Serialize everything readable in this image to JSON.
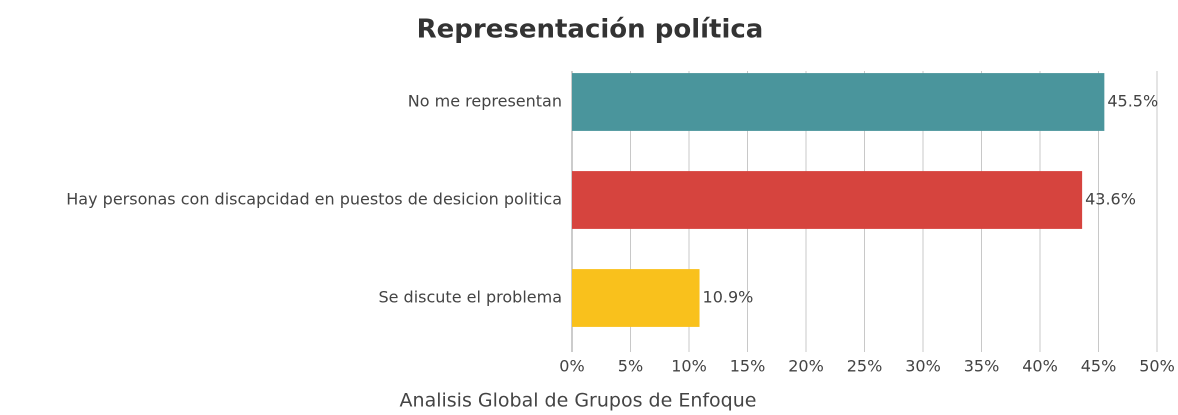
{
  "chart_data": {
    "type": "barh",
    "title": "Representación política",
    "xlabel": "Analisis Global de Grupos de Enfoque",
    "categories": [
      "No me representan",
      "Hay personas con discapcidad en puestos de desicion politica",
      "Se discute el problema"
    ],
    "values": [
      45.5,
      43.6,
      10.9
    ],
    "value_labels": [
      "45.5%",
      "43.6%",
      "10.9%"
    ],
    "colors": [
      "#4a959c",
      "#d6443e",
      "#f9c11c"
    ],
    "xlim": [
      0,
      50
    ],
    "xticks": [
      {
        "value": 0,
        "label": "0%"
      },
      {
        "value": 5,
        "label": "5%"
      },
      {
        "value": 10,
        "label": "10%"
      },
      {
        "value": 15,
        "label": "15%"
      },
      {
        "value": 20,
        "label": "20%"
      },
      {
        "value": 25,
        "label": "25%"
      },
      {
        "value": 30,
        "label": "30%"
      },
      {
        "value": 35,
        "label": "35%"
      },
      {
        "value": 40,
        "label": "40%"
      },
      {
        "value": 45,
        "label": "45%"
      },
      {
        "value": 50,
        "label": "50%"
      }
    ],
    "grid": true
  }
}
